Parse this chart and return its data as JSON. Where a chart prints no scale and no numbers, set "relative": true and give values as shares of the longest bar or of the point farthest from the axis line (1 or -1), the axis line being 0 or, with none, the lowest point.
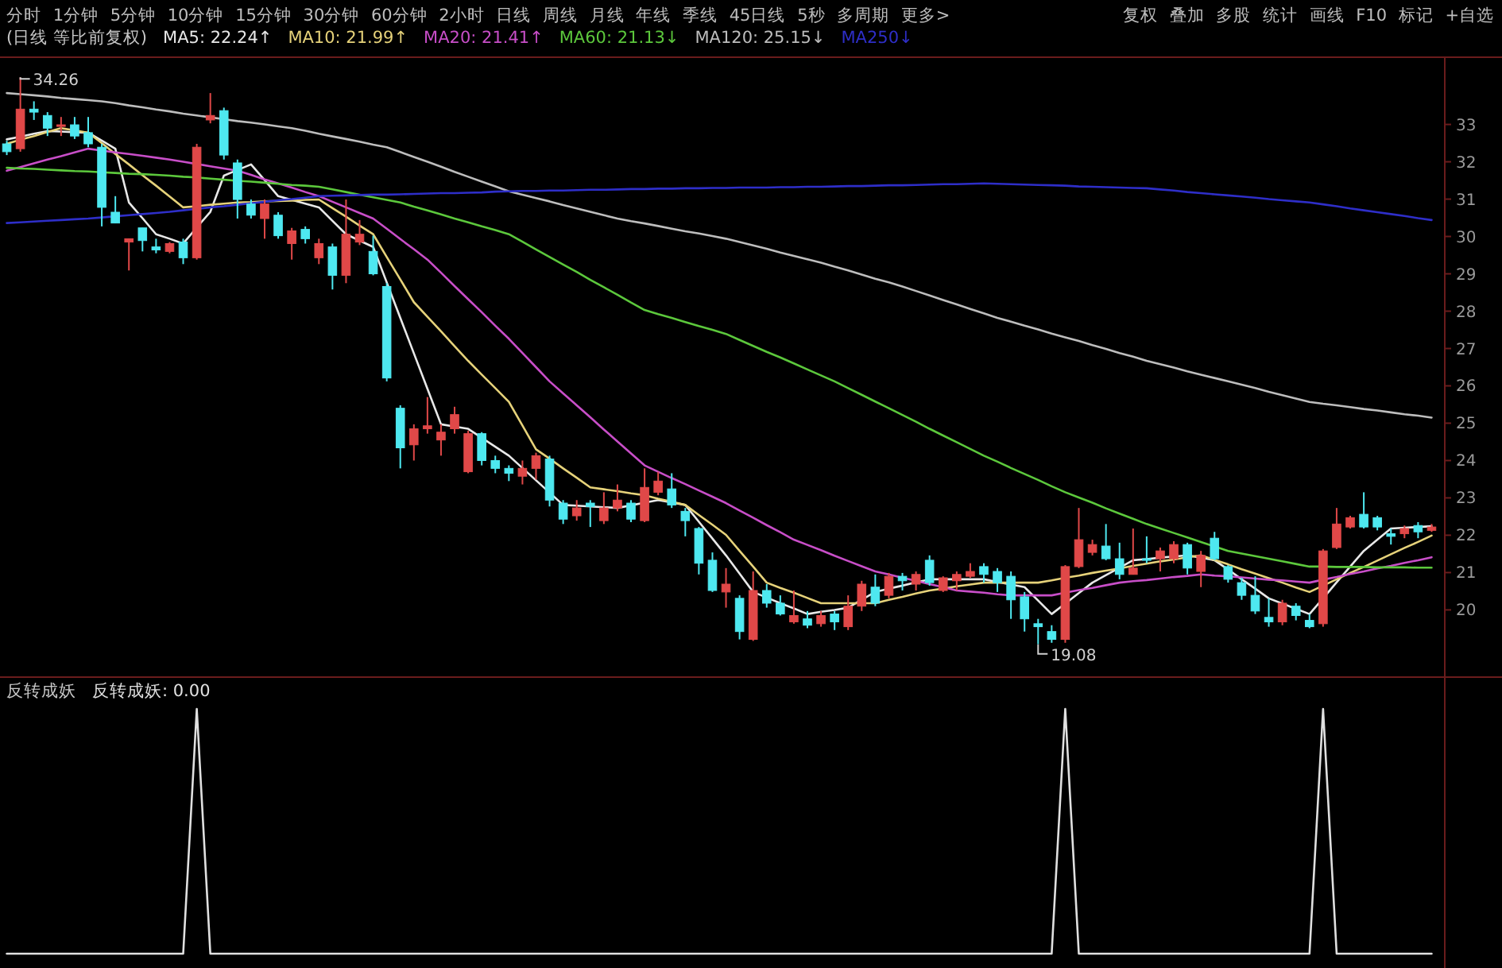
{
  "chart_data": [
    {
      "type": "candlestick",
      "title": "(日线 等比前复权)",
      "tick_labels": "y",
      "ylim": [
        18.2,
        34.8
      ],
      "yticks": [
        20,
        21,
        22,
        23,
        24,
        25,
        26,
        27,
        28,
        29,
        30,
        31,
        32,
        33
      ],
      "categories": [
        null,
        null,
        null,
        null,
        null,
        null,
        null,
        null,
        null,
        null,
        null,
        null,
        null,
        null,
        null,
        null,
        null,
        null,
        null,
        null,
        null,
        null,
        null,
        null,
        null,
        null,
        null,
        null,
        null,
        null,
        null,
        null,
        null,
        null,
        null,
        null,
        null,
        null,
        null,
        null,
        null,
        null,
        null,
        null,
        null,
        null,
        null,
        null,
        null,
        null,
        null,
        null,
        null,
        null,
        null,
        null,
        null,
        null,
        null,
        null,
        null,
        null,
        null,
        null,
        null,
        null,
        null,
        null,
        null,
        null,
        null,
        null,
        null,
        null,
        null,
        null,
        null,
        null,
        null,
        null,
        null,
        null,
        null,
        null,
        null,
        null,
        null,
        null,
        null,
        null,
        null,
        null,
        null,
        null,
        null,
        null,
        null,
        null,
        null,
        null,
        null,
        null,
        null,
        null,
        null,
        null
      ],
      "ohlc": [
        [
          32.48,
          32.56,
          32.18,
          32.27
        ],
        [
          32.35,
          34.26,
          32.27,
          33.41
        ],
        [
          33.41,
          33.62,
          33.12,
          33.33
        ],
        [
          33.24,
          33.33,
          32.69,
          32.9
        ],
        [
          32.95,
          33.2,
          32.69,
          32.99
        ],
        [
          32.99,
          33.2,
          32.61,
          32.69
        ],
        [
          32.78,
          33.2,
          32.39,
          32.48
        ],
        [
          32.39,
          32.48,
          30.27,
          30.78
        ],
        [
          30.65,
          31.08,
          30.36,
          30.36
        ],
        [
          29.85,
          29.94,
          29.09,
          29.94
        ],
        [
          30.23,
          30.23,
          29.6,
          29.89
        ],
        [
          29.72,
          29.94,
          29.55,
          29.64
        ],
        [
          29.6,
          29.85,
          29.55,
          29.81
        ],
        [
          29.85,
          29.94,
          29.26,
          29.43
        ],
        [
          29.43,
          32.48,
          29.38,
          32.39
        ],
        [
          33.12,
          33.84,
          33.03,
          33.24
        ],
        [
          33.37,
          33.45,
          32.06,
          32.18
        ],
        [
          31.97,
          32.06,
          30.48,
          30.99
        ],
        [
          30.87,
          30.99,
          30.48,
          30.57
        ],
        [
          30.48,
          30.99,
          29.94,
          30.87
        ],
        [
          30.57,
          30.65,
          29.94,
          30.02
        ],
        [
          29.81,
          30.23,
          29.38,
          30.15
        ],
        [
          30.19,
          30.27,
          29.81,
          29.94
        ],
        [
          29.43,
          29.94,
          29.26,
          29.81
        ],
        [
          29.72,
          29.81,
          28.58,
          28.96
        ],
        [
          28.96,
          30.99,
          28.75,
          30.06
        ],
        [
          29.85,
          30.44,
          29.77,
          30.06
        ],
        [
          29.6,
          30.02,
          28.96,
          29.0
        ],
        [
          28.66,
          28.75,
          26.12,
          26.21
        ],
        [
          25.4,
          25.48,
          23.79,
          24.34
        ],
        [
          24.42,
          24.97,
          24.0,
          24.85
        ],
        [
          24.85,
          25.7,
          24.72,
          24.93
        ],
        [
          24.55,
          24.97,
          24.13,
          24.76
        ],
        [
          24.85,
          25.44,
          24.72,
          25.23
        ],
        [
          23.7,
          24.8,
          23.66,
          24.72
        ],
        [
          24.72,
          24.76,
          23.87,
          24.0
        ],
        [
          24.0,
          24.13,
          23.66,
          23.79
        ],
        [
          23.79,
          23.87,
          23.45,
          23.66
        ],
        [
          23.58,
          24.0,
          23.36,
          23.79
        ],
        [
          23.79,
          24.21,
          23.49,
          24.13
        ],
        [
          24.04,
          24.13,
          22.77,
          22.94
        ],
        [
          22.86,
          22.94,
          22.3,
          22.43
        ],
        [
          22.52,
          22.94,
          22.39,
          22.73
        ],
        [
          22.86,
          22.94,
          22.22,
          22.77
        ],
        [
          22.39,
          23.15,
          22.3,
          22.73
        ],
        [
          22.73,
          23.36,
          22.64,
          22.94
        ],
        [
          22.86,
          22.94,
          22.35,
          22.43
        ],
        [
          22.39,
          23.79,
          22.35,
          23.28
        ],
        [
          23.15,
          23.7,
          23.07,
          23.45
        ],
        [
          23.24,
          23.66,
          22.73,
          22.81
        ],
        [
          22.64,
          22.73,
          21.97,
          22.39
        ],
        [
          22.18,
          22.22,
          20.95,
          21.25
        ],
        [
          21.33,
          21.54,
          20.48,
          20.52
        ],
        [
          20.48,
          21.12,
          20.06,
          20.69
        ],
        [
          20.31,
          20.39,
          19.21,
          19.42
        ],
        [
          19.21,
          21.03,
          19.17,
          20.52
        ],
        [
          20.52,
          20.69,
          20.06,
          20.18
        ],
        [
          20.18,
          20.39,
          19.85,
          19.89
        ],
        [
          19.68,
          20.52,
          19.63,
          19.85
        ],
        [
          19.76,
          19.97,
          19.51,
          19.59
        ],
        [
          19.63,
          19.97,
          19.55,
          19.85
        ],
        [
          19.89,
          19.97,
          19.46,
          19.68
        ],
        [
          19.55,
          20.39,
          19.46,
          20.1
        ],
        [
          20.1,
          20.78,
          19.97,
          20.69
        ],
        [
          20.61,
          20.95,
          20.1,
          20.18
        ],
        [
          20.39,
          20.99,
          20.31,
          20.9
        ],
        [
          20.9,
          20.99,
          20.52,
          20.78
        ],
        [
          20.69,
          21.03,
          20.52,
          20.95
        ],
        [
          21.33,
          21.46,
          20.65,
          20.73
        ],
        [
          20.52,
          20.9,
          20.48,
          20.86
        ],
        [
          20.78,
          21.03,
          20.52,
          20.95
        ],
        [
          20.9,
          21.25,
          20.86,
          21.03
        ],
        [
          21.16,
          21.25,
          20.73,
          20.95
        ],
        [
          21.03,
          21.12,
          20.48,
          20.73
        ],
        [
          20.9,
          21.03,
          19.76,
          20.27
        ],
        [
          20.35,
          20.48,
          19.42,
          19.76
        ],
        [
          19.63,
          19.76,
          19.08,
          19.55
        ],
        [
          19.42,
          19.59,
          19.12,
          19.21
        ],
        [
          19.21,
          21.2,
          19.12,
          21.16
        ],
        [
          21.16,
          22.73,
          21.12,
          21.88
        ],
        [
          21.54,
          21.88,
          21.46,
          21.75
        ],
        [
          21.71,
          22.3,
          21.33,
          21.37
        ],
        [
          21.37,
          21.8,
          20.82,
          20.95
        ],
        [
          20.95,
          22.18,
          20.95,
          21.12
        ],
        [
          21.37,
          21.97,
          21.25,
          21.33
        ],
        [
          21.37,
          21.67,
          21.03,
          21.58
        ],
        [
          21.37,
          21.84,
          21.25,
          21.75
        ],
        [
          21.75,
          21.8,
          20.95,
          21.12
        ],
        [
          21.03,
          21.58,
          20.61,
          21.46
        ],
        [
          21.92,
          22.09,
          21.33,
          21.37
        ],
        [
          21.16,
          21.2,
          20.73,
          20.82
        ],
        [
          20.73,
          20.86,
          20.27,
          20.39
        ],
        [
          20.39,
          20.9,
          19.89,
          19.97
        ],
        [
          19.8,
          20.31,
          19.55,
          19.68
        ],
        [
          19.68,
          20.27,
          19.59,
          20.18
        ],
        [
          20.1,
          20.18,
          19.72,
          19.85
        ],
        [
          19.72,
          19.89,
          19.51,
          19.55
        ],
        [
          19.63,
          21.63,
          19.55,
          21.58
        ],
        [
          21.67,
          22.73,
          21.63,
          22.3
        ],
        [
          22.22,
          22.52,
          22.18,
          22.47
        ],
        [
          22.56,
          23.15,
          22.18,
          22.22
        ],
        [
          22.47,
          22.52,
          22.13,
          22.22
        ],
        [
          22.04,
          22.18,
          21.75,
          21.97
        ],
        [
          22.04,
          22.26,
          21.92,
          22.18
        ],
        [
          22.26,
          22.35,
          21.92,
          22.09
        ],
        [
          22.13,
          22.3,
          22.09,
          22.22
        ]
      ],
      "colors": [
        "#4ee8f0",
        "#e04848",
        "#4ee8f0",
        "#4ee8f0",
        "#e04848",
        "#4ee8f0",
        "#4ee8f0",
        "#4ee8f0",
        "#4ee8f0",
        "#e04848",
        "#4ee8f0",
        "#4ee8f0",
        "#e04848",
        "#4ee8f0",
        "#e04848",
        "#e04848",
        "#4ee8f0",
        "#4ee8f0",
        "#4ee8f0",
        "#e04848",
        "#4ee8f0",
        "#e04848",
        "#4ee8f0",
        "#e04848",
        "#4ee8f0",
        "#e04848",
        "#e04848",
        "#4ee8f0",
        "#4ee8f0",
        "#4ee8f0",
        "#e04848",
        "#e04848",
        "#e04848",
        "#e04848",
        "#e04848",
        "#4ee8f0",
        "#4ee8f0",
        "#4ee8f0",
        "#e04848",
        "#e04848",
        "#4ee8f0",
        "#4ee8f0",
        "#e04848",
        "#4ee8f0",
        "#e04848",
        "#e04848",
        "#4ee8f0",
        "#e04848",
        "#e04848",
        "#4ee8f0",
        "#4ee8f0",
        "#4ee8f0",
        "#4ee8f0",
        "#e04848",
        "#4ee8f0",
        "#e04848",
        "#4ee8f0",
        "#4ee8f0",
        "#e04848",
        "#4ee8f0",
        "#e04848",
        "#4ee8f0",
        "#e04848",
        "#e04848",
        "#4ee8f0",
        "#e04848",
        "#4ee8f0",
        "#e04848",
        "#4ee8f0",
        "#e04848",
        "#e04848",
        "#e04848",
        "#4ee8f0",
        "#4ee8f0",
        "#4ee8f0",
        "#4ee8f0",
        "#4ee8f0",
        "#4ee8f0",
        "#e04848",
        "#e04848",
        "#e04848",
        "#4ee8f0",
        "#4ee8f0",
        "#e04848",
        "#4ee8f0",
        "#e04848",
        "#e04848",
        "#4ee8f0",
        "#e04848",
        "#4ee8f0",
        "#4ee8f0",
        "#4ee8f0",
        "#4ee8f0",
        "#4ee8f0",
        "#e04848",
        "#4ee8f0",
        "#4ee8f0",
        "#e04848",
        "#e04848",
        "#e04848",
        "#4ee8f0",
        "#4ee8f0",
        "#4ee8f0",
        "#e04848",
        "#4ee8f0",
        "#e04848"
      ],
      "series": [
        {
          "name": "MA5: 22.24↑",
          "type": "line",
          "color": "#e8e8e8",
          "values": [
            32.6,
            32.67,
            32.75,
            32.82,
            32.81,
            32.79,
            32.78,
            32.57,
            32.35,
            30.91,
            30.49,
            30.06,
            29.94,
            29.81,
            30.24,
            30.66,
            31.63,
            31.78,
            31.93,
            31.51,
            31.08,
            30.98,
            30.88,
            30.78,
            30.42,
            30.06,
            29.89,
            29.72,
            28.77,
            27.82,
            26.87,
            25.92,
            24.97,
            24.91,
            24.85,
            24.61,
            24.37,
            24.13,
            23.8,
            23.47,
            23.14,
            22.81,
            22.79,
            22.77,
            22.75,
            22.73,
            22.8,
            22.87,
            22.94,
            22.88,
            22.81,
            22.36,
            21.91,
            21.46,
            20.97,
            20.48,
            20.33,
            20.18,
            20.04,
            19.89,
            19.95,
            20.0,
            20.06,
            20.27,
            20.48,
            20.57,
            20.65,
            20.74,
            20.82,
            20.82,
            20.82,
            20.82,
            20.82,
            20.75,
            20.68,
            20.61,
            20.25,
            19.89,
            20.17,
            20.45,
            20.73,
            20.93,
            21.13,
            21.33,
            21.36,
            21.4,
            21.43,
            21.46,
            21.4,
            21.33,
            21.08,
            20.82,
            20.57,
            20.31,
            20.17,
            20.03,
            19.89,
            20.31,
            20.74,
            21.16,
            21.58,
            21.88,
            22.18,
            22.2,
            22.22,
            22.24
          ]
        },
        {
          "name": "MA10: 21.99↑",
          "type": "line",
          "color": "#e6d27a",
          "values": [
            32.48,
            32.59,
            32.69,
            32.8,
            32.9,
            32.84,
            32.78,
            32.5,
            32.21,
            31.93,
            31.64,
            31.36,
            31.07,
            30.78,
            30.81,
            30.85,
            30.88,
            30.91,
            30.92,
            30.94,
            30.95,
            30.96,
            30.98,
            30.99,
            30.76,
            30.53,
            30.29,
            30.06,
            29.45,
            28.85,
            28.24,
            27.85,
            27.46,
            27.06,
            26.67,
            26.3,
            25.94,
            25.57,
            24.94,
            24.3,
            24.05,
            23.79,
            23.54,
            23.28,
            23.23,
            23.18,
            23.12,
            23.07,
            22.98,
            22.9,
            22.81,
            22.54,
            22.28,
            22.01,
            21.58,
            21.16,
            20.73,
            20.59,
            20.46,
            20.32,
            20.18,
            20.18,
            20.18,
            20.18,
            20.18,
            20.27,
            20.35,
            20.44,
            20.52,
            20.57,
            20.63,
            20.68,
            20.73,
            20.73,
            20.73,
            20.73,
            20.73,
            20.79,
            20.86,
            20.92,
            20.99,
            21.05,
            21.11,
            21.18,
            21.24,
            21.3,
            21.35,
            21.41,
            21.46,
            21.34,
            21.22,
            21.09,
            20.97,
            20.85,
            20.73,
            20.6,
            20.48,
            20.65,
            20.82,
            20.99,
            21.15,
            21.32,
            21.49,
            21.66,
            21.82,
            21.99
          ]
        },
        {
          "name": "MA20: 21.41↑",
          "type": "line",
          "color": "#c84ec8",
          "values": [
            31.76,
            31.86,
            31.96,
            32.06,
            32.15,
            32.25,
            32.35,
            32.3,
            32.25,
            32.21,
            32.16,
            32.11,
            32.06,
            32.0,
            31.94,
            31.88,
            31.82,
            31.76,
            31.65,
            31.53,
            31.42,
            31.31,
            31.19,
            31.08,
            30.93,
            30.78,
            30.63,
            30.48,
            30.21,
            29.93,
            29.66,
            29.38,
            29.03,
            28.67,
            28.32,
            27.97,
            27.61,
            27.26,
            26.88,
            26.5,
            26.12,
            25.8,
            25.48,
            25.16,
            24.83,
            24.51,
            24.19,
            23.87,
            23.7,
            23.53,
            23.37,
            23.2,
            23.03,
            22.86,
            22.66,
            22.47,
            22.27,
            22.08,
            21.88,
            21.74,
            21.6,
            21.45,
            21.31,
            21.17,
            21.03,
            20.95,
            20.86,
            20.78,
            20.69,
            20.61,
            20.52,
            20.49,
            20.46,
            20.42,
            20.39,
            20.39,
            20.39,
            20.39,
            20.46,
            20.53,
            20.59,
            20.66,
            20.73,
            20.77,
            20.8,
            20.84,
            20.88,
            20.91,
            20.95,
            20.92,
            20.9,
            20.87,
            20.84,
            20.81,
            20.79,
            20.76,
            20.73,
            20.81,
            20.88,
            20.96,
            21.03,
            21.11,
            21.18,
            21.26,
            21.33,
            21.41
          ]
        },
        {
          "name": "MA60: 21.13↓",
          "type": "line",
          "color": "#5cc83c",
          "values": [
            31.84,
            31.82,
            31.81,
            31.79,
            31.77,
            31.75,
            31.74,
            31.72,
            31.7,
            31.68,
            31.67,
            31.65,
            31.63,
            31.6,
            31.58,
            31.55,
            31.52,
            31.49,
            31.47,
            31.44,
            31.41,
            31.38,
            31.36,
            31.33,
            31.26,
            31.19,
            31.12,
            31.05,
            30.98,
            30.91,
            30.8,
            30.7,
            30.59,
            30.48,
            30.38,
            30.27,
            30.17,
            30.06,
            29.86,
            29.65,
            29.45,
            29.25,
            29.05,
            28.84,
            28.64,
            28.44,
            28.23,
            28.03,
            27.92,
            27.82,
            27.71,
            27.6,
            27.5,
            27.39,
            27.23,
            27.07,
            26.91,
            26.76,
            26.6,
            26.44,
            26.28,
            26.12,
            25.94,
            25.76,
            25.58,
            25.4,
            25.22,
            25.04,
            24.85,
            24.67,
            24.49,
            24.31,
            24.13,
            23.97,
            23.8,
            23.64,
            23.48,
            23.31,
            23.15,
            23.01,
            22.87,
            22.72,
            22.58,
            22.44,
            22.3,
            22.18,
            22.06,
            21.94,
            21.82,
            21.7,
            21.58,
            21.51,
            21.44,
            21.37,
            21.3,
            21.23,
            21.16,
            21.16,
            21.15,
            21.15,
            21.15,
            21.14,
            21.14,
            21.14,
            21.13,
            21.13
          ]
        },
        {
          "name": "MA120: 25.15↓",
          "type": "line",
          "color": "#bdbdbd",
          "values": [
            33.84,
            33.81,
            33.78,
            33.75,
            33.71,
            33.68,
            33.65,
            33.62,
            33.57,
            33.51,
            33.46,
            33.4,
            33.35,
            33.29,
            33.24,
            33.19,
            33.14,
            33.09,
            33.05,
            33.0,
            32.95,
            32.9,
            32.83,
            32.75,
            32.68,
            32.61,
            32.54,
            32.46,
            32.39,
            32.26,
            32.13,
            32.0,
            31.87,
            31.73,
            31.6,
            31.47,
            31.34,
            31.21,
            31.12,
            31.03,
            30.94,
            30.84,
            30.75,
            30.66,
            30.57,
            30.48,
            30.41,
            30.35,
            30.28,
            30.21,
            30.14,
            30.08,
            30.01,
            29.94,
            29.85,
            29.76,
            29.67,
            29.57,
            29.48,
            29.39,
            29.3,
            29.19,
            29.09,
            28.98,
            28.87,
            28.77,
            28.66,
            28.54,
            28.42,
            28.3,
            28.18,
            28.06,
            27.94,
            27.82,
            27.72,
            27.61,
            27.51,
            27.4,
            27.3,
            27.2,
            27.09,
            26.99,
            26.88,
            26.78,
            26.67,
            26.58,
            26.49,
            26.39,
            26.3,
            26.21,
            26.12,
            26.03,
            25.94,
            25.84,
            25.75,
            25.66,
            25.57,
            25.52,
            25.48,
            25.43,
            25.38,
            25.34,
            25.29,
            25.24,
            25.2,
            25.15
          ]
        },
        {
          "name": "MA250↓",
          "type": "line",
          "color": "#2e2ec8",
          "values": [
            30.36,
            30.38,
            30.4,
            30.42,
            30.44,
            30.46,
            30.48,
            30.51,
            30.54,
            30.57,
            30.6,
            30.63,
            30.66,
            30.7,
            30.74,
            30.78,
            30.81,
            30.85,
            30.89,
            30.93,
            30.97,
            31.0,
            31.04,
            31.08,
            31.09,
            31.1,
            31.11,
            31.12,
            31.12,
            31.13,
            31.14,
            31.15,
            31.16,
            31.16,
            31.17,
            31.18,
            31.2,
            31.21,
            31.22,
            31.22,
            31.23,
            31.23,
            31.24,
            31.25,
            31.25,
            31.26,
            31.27,
            31.27,
            31.28,
            31.28,
            31.29,
            31.29,
            31.3,
            31.3,
            31.31,
            31.31,
            31.31,
            31.32,
            31.32,
            31.33,
            31.33,
            31.34,
            31.35,
            31.35,
            31.36,
            31.37,
            31.37,
            31.38,
            31.39,
            31.4,
            31.4,
            31.41,
            31.42,
            31.41,
            31.4,
            31.39,
            31.38,
            31.37,
            31.36,
            31.34,
            31.33,
            31.32,
            31.31,
            31.3,
            31.29,
            31.26,
            31.23,
            31.19,
            31.16,
            31.13,
            31.1,
            31.07,
            31.04,
            31.0,
            30.97,
            30.94,
            30.91,
            30.86,
            30.81,
            30.75,
            30.7,
            30.65,
            30.6,
            30.55,
            30.49,
            30.44
          ]
        }
      ],
      "annotations": [
        "分时 1分钟 5分钟 10分钟 15分钟 30分钟 60分钟 2小时 日线 周线 月线 年线 季线 45日线 5秒 多周期 更多>",
        "复权 叠加 多股 统计 画线 F10 标记 +自选",
        "34.26",
        {
          "text": "19.08",
          "y": 19.08
        }
      ]
    },
    {
      "type": "line",
      "title": "反转成妖",
      "relative": true,
      "categories": [
        null,
        null,
        null,
        null,
        null,
        null,
        null,
        null,
        null,
        null,
        null,
        null,
        null,
        null,
        null,
        null,
        null,
        null,
        null,
        null,
        null,
        null,
        null,
        null,
        null,
        null,
        null,
        null,
        null,
        null,
        null,
        null,
        null,
        null,
        null,
        null,
        null,
        null,
        null,
        null,
        null,
        null,
        null,
        null,
        null,
        null,
        null,
        null,
        null,
        null,
        null,
        null,
        null,
        null,
        null,
        null,
        null,
        null,
        null,
        null,
        null,
        null,
        null,
        null,
        null,
        null,
        null,
        null,
        null,
        null,
        null,
        null,
        null,
        null,
        null,
        null,
        null,
        null,
        null,
        null,
        null,
        null,
        null,
        null,
        null,
        null,
        null,
        null,
        null,
        null,
        null,
        null,
        null,
        null,
        null,
        null,
        null,
        null,
        null,
        null,
        null,
        null,
        null,
        null,
        null,
        null
      ],
      "series": [
        {
          "name": "反转成妖: 0.00",
          "color": "#e0e0e0",
          "values": [
            0,
            0,
            0,
            0,
            0,
            0,
            0,
            0,
            0,
            0,
            0,
            0,
            0,
            0,
            1,
            0,
            0,
            0,
            0,
            0,
            0,
            0,
            0,
            0,
            0,
            0,
            0,
            0,
            0,
            0,
            0,
            0,
            0,
            0,
            0,
            0,
            0,
            0,
            0,
            0,
            0,
            0,
            0,
            0,
            0,
            0,
            0,
            0,
            0,
            0,
            0,
            0,
            0,
            0,
            0,
            0,
            0,
            0,
            0,
            0,
            0,
            0,
            0,
            0,
            0,
            0,
            0,
            0,
            0,
            0,
            0,
            0,
            0,
            0,
            0,
            0,
            0,
            0,
            1,
            0,
            0,
            0,
            0,
            0,
            0,
            0,
            0,
            0,
            0,
            0,
            0,
            0,
            0,
            0,
            0,
            0,
            0,
            1,
            0,
            0,
            0,
            0,
            0,
            0,
            0,
            0
          ]
        }
      ]
    }
  ]
}
